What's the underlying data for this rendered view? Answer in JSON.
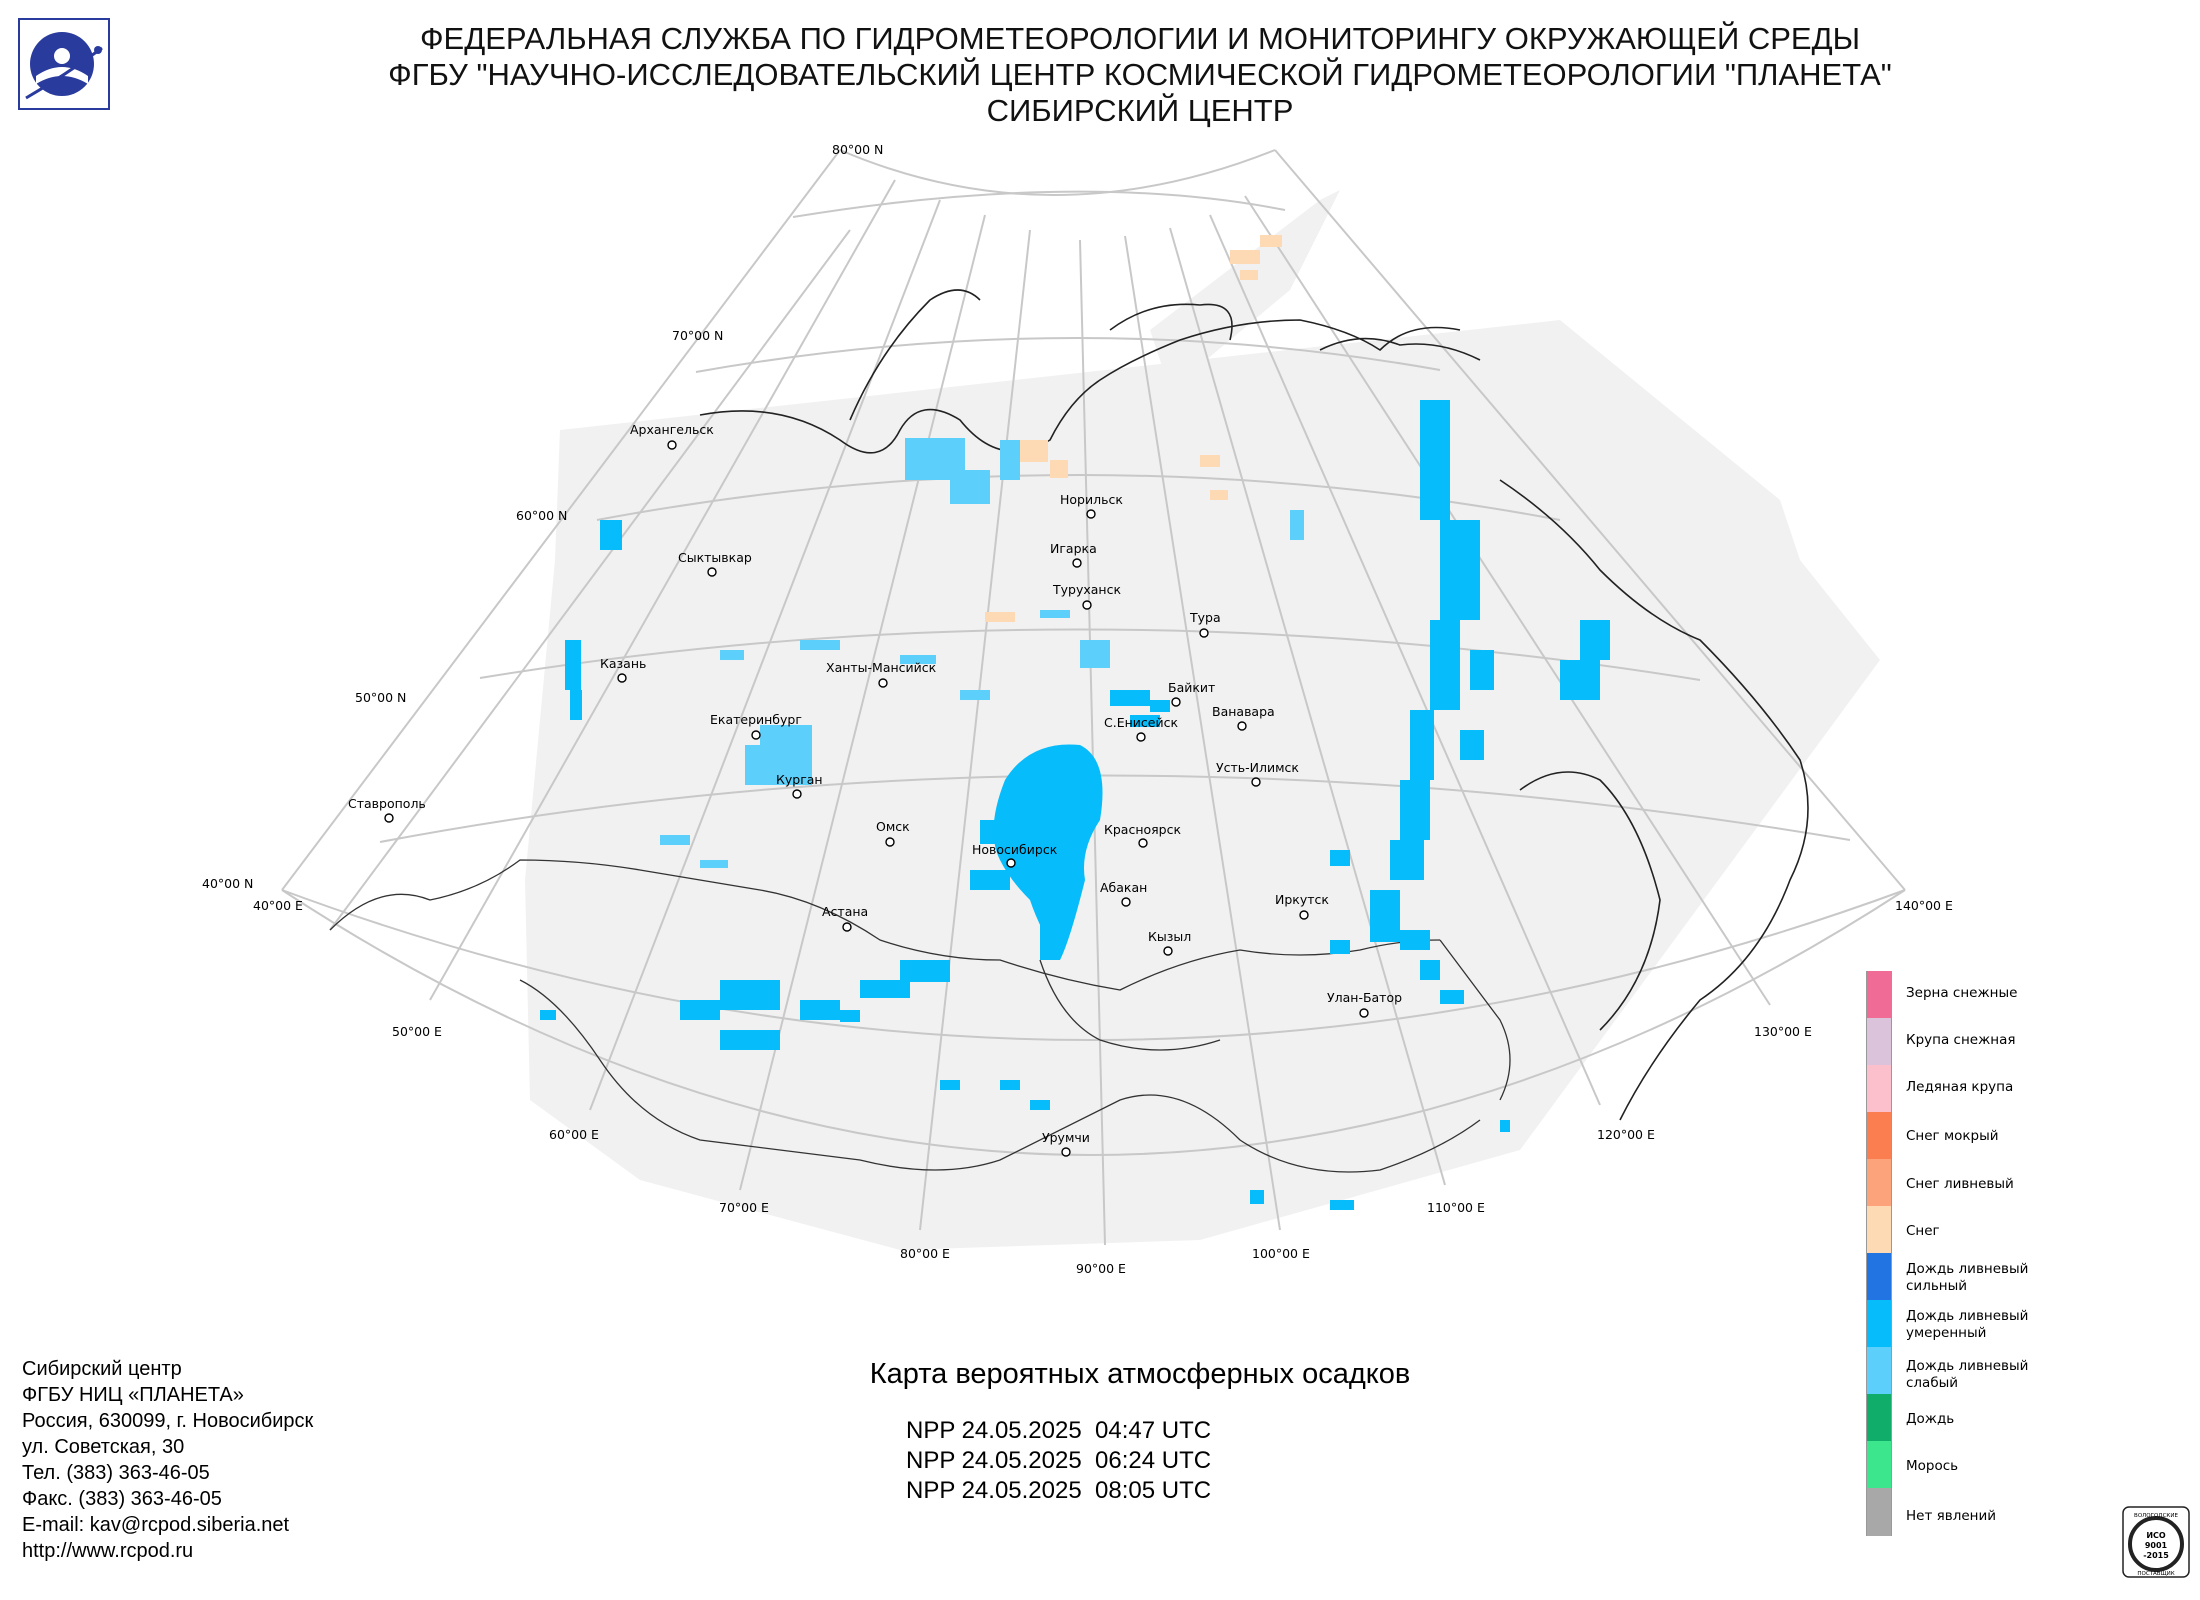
{
  "header": {
    "line1": "ФЕДЕРАЛЬНАЯ СЛУЖБА ПО ГИДРОМЕТЕОРОЛОГИИ И МОНИТОРИНГУ ОКРУЖАЮЩЕЙ СРЕДЫ",
    "line2": "ФГБУ \"НАУЧНО-ИССЛЕДОВАТЕЛЬСКИЙ ЦЕНТР КОСМИЧЕСКОЙ ГИДРОМЕТЕОРОЛОГИИ \"ПЛАНЕТА\"",
    "line3": "СИБИРСКИЙ ЦЕНТР"
  },
  "map": {
    "latitude_labels": [
      "80°00 N",
      "70°00 N",
      "60°00 N",
      "50°00 N",
      "40°00 N"
    ],
    "longitude_labels": [
      "40°00 E",
      "50°00 E",
      "60°00 E",
      "70°00 E",
      "80°00 E",
      "90°00 E",
      "100°00 E",
      "110°00 E",
      "120°00 E",
      "130°00 E",
      "140°00 E"
    ],
    "cities": [
      {
        "name": "Архангельск"
      },
      {
        "name": "Сыктывкар"
      },
      {
        "name": "Казань"
      },
      {
        "name": "Екатеринбург"
      },
      {
        "name": "Курган"
      },
      {
        "name": "Ханты-Мансийск"
      },
      {
        "name": "Ставрополь"
      },
      {
        "name": "Омск"
      },
      {
        "name": "Астана"
      },
      {
        "name": "Новосибирск"
      },
      {
        "name": "Красноярск"
      },
      {
        "name": "Абакан"
      },
      {
        "name": "Кызыл"
      },
      {
        "name": "Норильск"
      },
      {
        "name": "Игарка"
      },
      {
        "name": "Туруханск"
      },
      {
        "name": "Тура"
      },
      {
        "name": "Байкит"
      },
      {
        "name": "С.Енисейск"
      },
      {
        "name": "Ванавара"
      },
      {
        "name": "Усть-Илимск"
      },
      {
        "name": "Иркутск"
      },
      {
        "name": "Улан-Батор"
      },
      {
        "name": "Урумчи"
      }
    ]
  },
  "legend": {
    "items": [
      {
        "label": "Зерна снежные",
        "color": "#f06c96"
      },
      {
        "label": "Крупа снежная",
        "color": "#dcc3dc"
      },
      {
        "label": "Ледяная крупа",
        "color": "#fcc0cc"
      },
      {
        "label": "Снег мокрый",
        "color": "#fb7e50"
      },
      {
        "label": "Снег ливневый",
        "color": "#fca37b"
      },
      {
        "label": "Снег",
        "color": "#fdd9b4"
      },
      {
        "label": "Дождь ливневый сильный",
        "color": "#2374e3"
      },
      {
        "label": "Дождь ливневый умеренный",
        "color": "#06bcfb"
      },
      {
        "label": "Дождь ливневый слабый",
        "color": "#5dcffb"
      },
      {
        "label": "Дождь",
        "color": "#10ad6a"
      },
      {
        "label": "Морось",
        "color": "#3ce68c"
      },
      {
        "label": "Нет явлений",
        "color": "#a8a8a8"
      }
    ]
  },
  "contacts": [
    "Сибирский центр",
    "ФГБУ НИЦ «ПЛАНЕТА»",
    "Россия, 630099, г. Новосибирск",
    "ул. Советская, 30",
    "Тел. (383) 363-46-05",
    "Факс. (383) 363-46-05",
    "E-mail: kav@rcpod.siberia.net",
    "http://www.rcpod.ru"
  ],
  "map_title": "Карта вероятных атмосферных осадков",
  "passes": [
    "NPP 24.05.2025  04:47 UTC",
    "NPP 24.05.2025  06:24 UTC",
    "NPP 24.05.2025  08:05 UTC"
  ],
  "iso_badge": {
    "top": "ВОЛОГОДСКИЕ",
    "line1": "ИСО",
    "line2": "9001",
    "line3": "-2015",
    "bottom": "ПОСТАВЩИК"
  }
}
